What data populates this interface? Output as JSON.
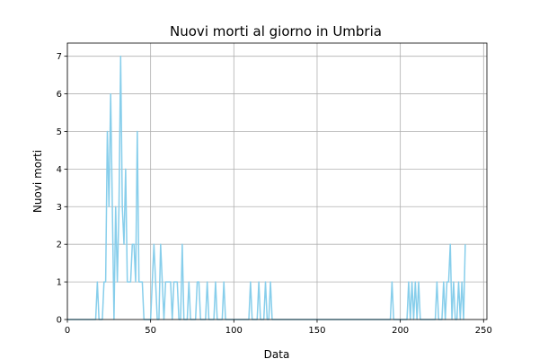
{
  "chart_data": {
    "type": "line",
    "title": "Nuovi morti al giorno in Umbria",
    "xlabel": "Data",
    "ylabel": "Nuovi morti",
    "xlim": [
      0,
      252
    ],
    "ylim": [
      0,
      7.35
    ],
    "xticks": [
      0,
      50,
      100,
      150,
      200,
      250
    ],
    "yticks": [
      0,
      1,
      2,
      3,
      4,
      5,
      6,
      7
    ],
    "grid": true,
    "line_color": "#87ceeb",
    "series": [
      {
        "points": [
          [
            0,
            0
          ],
          [
            1,
            0
          ],
          [
            2,
            0
          ],
          [
            3,
            0
          ],
          [
            4,
            0
          ],
          [
            5,
            0
          ],
          [
            6,
            0
          ],
          [
            7,
            0
          ],
          [
            8,
            0
          ],
          [
            9,
            0
          ],
          [
            10,
            0
          ],
          [
            11,
            0
          ],
          [
            12,
            0
          ],
          [
            13,
            0
          ],
          [
            14,
            0
          ],
          [
            15,
            0
          ],
          [
            16,
            0
          ],
          [
            17,
            0
          ],
          [
            18,
            1
          ],
          [
            19,
            0
          ],
          [
            20,
            0
          ],
          [
            21,
            0
          ],
          [
            22,
            1
          ],
          [
            23,
            1
          ],
          [
            24,
            5
          ],
          [
            25,
            3
          ],
          [
            26,
            6
          ],
          [
            27,
            3
          ],
          [
            28,
            0
          ],
          [
            29,
            3
          ],
          [
            30,
            1
          ],
          [
            31,
            3
          ],
          [
            32,
            7
          ],
          [
            33,
            3
          ],
          [
            34,
            2
          ],
          [
            35,
            4
          ],
          [
            36,
            1
          ],
          [
            37,
            1
          ],
          [
            38,
            1
          ],
          [
            39,
            2
          ],
          [
            40,
            2
          ],
          [
            41,
            1
          ],
          [
            42,
            5
          ],
          [
            43,
            1
          ],
          [
            44,
            1
          ],
          [
            45,
            1
          ],
          [
            46,
            0
          ],
          [
            47,
            0
          ],
          [
            48,
            0
          ],
          [
            49,
            0
          ],
          [
            50,
            0
          ],
          [
            51,
            1
          ],
          [
            52,
            2
          ],
          [
            53,
            1
          ],
          [
            54,
            0
          ],
          [
            55,
            0
          ],
          [
            56,
            2
          ],
          [
            57,
            1
          ],
          [
            58,
            0
          ],
          [
            59,
            1
          ],
          [
            60,
            1
          ],
          [
            61,
            1
          ],
          [
            62,
            1
          ],
          [
            63,
            0
          ],
          [
            64,
            1
          ],
          [
            65,
            1
          ],
          [
            66,
            1
          ],
          [
            67,
            0
          ],
          [
            68,
            0
          ],
          [
            69,
            2
          ],
          [
            70,
            0
          ],
          [
            71,
            0
          ],
          [
            72,
            0
          ],
          [
            73,
            1
          ],
          [
            74,
            0
          ],
          [
            75,
            0
          ],
          [
            76,
            0
          ],
          [
            77,
            0
          ],
          [
            78,
            1
          ],
          [
            79,
            1
          ],
          [
            80,
            0
          ],
          [
            81,
            0
          ],
          [
            82,
            0
          ],
          [
            83,
            0
          ],
          [
            84,
            1
          ],
          [
            85,
            0
          ],
          [
            86,
            0
          ],
          [
            87,
            0
          ],
          [
            88,
            0
          ],
          [
            89,
            1
          ],
          [
            90,
            0
          ],
          [
            91,
            0
          ],
          [
            92,
            0
          ],
          [
            93,
            0
          ],
          [
            94,
            1
          ],
          [
            95,
            0
          ],
          [
            96,
            0
          ],
          [
            97,
            0
          ],
          [
            98,
            0
          ],
          [
            99,
            0
          ],
          [
            100,
            0
          ],
          [
            101,
            0
          ],
          [
            102,
            0
          ],
          [
            103,
            0
          ],
          [
            104,
            0
          ],
          [
            105,
            0
          ],
          [
            106,
            0
          ],
          [
            107,
            0
          ],
          [
            108,
            0
          ],
          [
            109,
            0
          ],
          [
            110,
            1
          ],
          [
            111,
            0
          ],
          [
            112,
            0
          ],
          [
            113,
            0
          ],
          [
            114,
            0
          ],
          [
            115,
            1
          ],
          [
            116,
            0
          ],
          [
            117,
            0
          ],
          [
            118,
            0
          ],
          [
            119,
            1
          ],
          [
            120,
            0
          ],
          [
            121,
            0
          ],
          [
            122,
            1
          ],
          [
            123,
            0
          ],
          [
            124,
            0
          ],
          [
            125,
            0
          ],
          [
            126,
            0
          ],
          [
            127,
            0
          ],
          [
            128,
            0
          ],
          [
            129,
            0
          ],
          [
            130,
            0
          ],
          [
            131,
            0
          ],
          [
            132,
            0
          ],
          [
            133,
            0
          ],
          [
            134,
            0
          ],
          [
            135,
            0
          ],
          [
            136,
            0
          ],
          [
            137,
            0
          ],
          [
            138,
            0
          ],
          [
            139,
            0
          ],
          [
            140,
            0
          ],
          [
            141,
            0
          ],
          [
            142,
            0
          ],
          [
            143,
            0
          ],
          [
            144,
            0
          ],
          [
            145,
            0
          ],
          [
            146,
            0
          ],
          [
            147,
            0
          ],
          [
            148,
            0
          ],
          [
            149,
            0
          ],
          [
            150,
            0
          ],
          [
            151,
            0
          ],
          [
            152,
            0
          ],
          [
            153,
            0
          ],
          [
            154,
            0
          ],
          [
            155,
            0
          ],
          [
            156,
            0
          ],
          [
            157,
            0
          ],
          [
            158,
            0
          ],
          [
            159,
            0
          ],
          [
            160,
            0
          ],
          [
            161,
            0
          ],
          [
            162,
            0
          ],
          [
            163,
            0
          ],
          [
            164,
            0
          ],
          [
            165,
            0
          ],
          [
            166,
            0
          ],
          [
            167,
            0
          ],
          [
            168,
            0
          ],
          [
            169,
            0
          ],
          [
            170,
            0
          ],
          [
            171,
            0
          ],
          [
            172,
            0
          ],
          [
            173,
            0
          ],
          [
            174,
            0
          ],
          [
            175,
            0
          ],
          [
            176,
            0
          ],
          [
            177,
            0
          ],
          [
            178,
            0
          ],
          [
            179,
            0
          ],
          [
            180,
            0
          ],
          [
            181,
            0
          ],
          [
            182,
            0
          ],
          [
            183,
            0
          ],
          [
            184,
            0
          ],
          [
            185,
            0
          ],
          [
            186,
            0
          ],
          [
            187,
            0
          ],
          [
            188,
            0
          ],
          [
            189,
            0
          ],
          [
            190,
            0
          ],
          [
            191,
            0
          ],
          [
            192,
            0
          ],
          [
            193,
            0
          ],
          [
            194,
            0
          ],
          [
            195,
            1
          ],
          [
            196,
            0
          ],
          [
            197,
            0
          ],
          [
            198,
            0
          ],
          [
            199,
            0
          ],
          [
            200,
            0
          ],
          [
            201,
            0
          ],
          [
            202,
            0
          ],
          [
            203,
            0
          ],
          [
            204,
            0
          ],
          [
            205,
            1
          ],
          [
            206,
            0
          ],
          [
            207,
            1
          ],
          [
            208,
            0
          ],
          [
            209,
            1
          ],
          [
            210,
            0
          ],
          [
            211,
            1
          ],
          [
            212,
            0
          ],
          [
            213,
            0
          ],
          [
            214,
            0
          ],
          [
            215,
            0
          ],
          [
            216,
            0
          ],
          [
            217,
            0
          ],
          [
            218,
            0
          ],
          [
            219,
            0
          ],
          [
            220,
            0
          ],
          [
            221,
            0
          ],
          [
            222,
            1
          ],
          [
            223,
            0
          ],
          [
            224,
            0
          ],
          [
            225,
            0
          ],
          [
            226,
            1
          ],
          [
            227,
            0
          ],
          [
            228,
            1
          ],
          [
            229,
            1
          ],
          [
            230,
            2
          ],
          [
            231,
            0
          ],
          [
            232,
            1
          ],
          [
            233,
            0
          ],
          [
            234,
            0
          ],
          [
            235,
            1
          ],
          [
            236,
            0
          ],
          [
            237,
            1
          ],
          [
            238,
            0
          ],
          [
            239,
            2
          ]
        ]
      }
    ]
  }
}
